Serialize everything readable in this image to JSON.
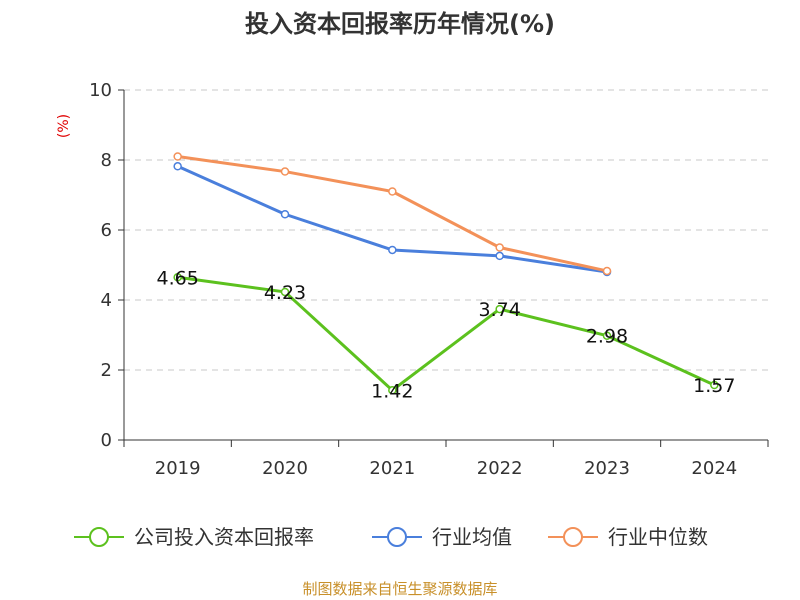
{
  "chart_data": {
    "type": "line",
    "title": "投入资本回报率历年情况(%)",
    "ylabel": "(%)",
    "categories": [
      "2019",
      "2020",
      "2021",
      "2022",
      "2023",
      "2024"
    ],
    "ylim": [
      0,
      10
    ],
    "yticks": [
      0,
      2,
      4,
      6,
      8,
      10
    ],
    "grid": true,
    "legend_position": "bottom",
    "series": [
      {
        "name": "公司投入资本回报率",
        "color": "#5cc11e",
        "values": [
          4.65,
          4.23,
          1.42,
          3.74,
          2.98,
          1.57
        ],
        "data_labels": [
          "4.65",
          "4.23",
          "1.42",
          "3.74",
          "2.98",
          "1.57"
        ]
      },
      {
        "name": "行业均值",
        "color": "#4a7fdc",
        "values": [
          7.82,
          6.45,
          5.43,
          5.26,
          4.8,
          null
        ]
      },
      {
        "name": "行业中位数",
        "color": "#f39159",
        "values": [
          8.1,
          7.67,
          7.1,
          5.5,
          4.83,
          null
        ]
      }
    ]
  },
  "footer": {
    "source": "制图数据来自恒生聚源数据库"
  }
}
